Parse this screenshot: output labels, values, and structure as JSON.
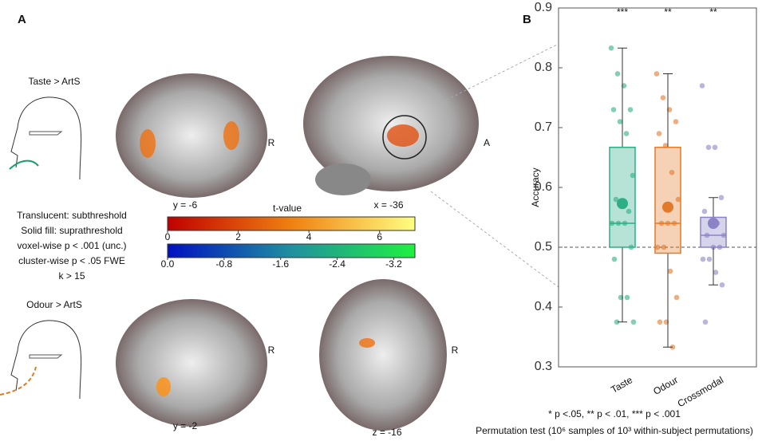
{
  "panel_a": {
    "label": "A",
    "contrast_1": "Taste > ArtS",
    "contrast_2": "Odour > ArtS",
    "legend": [
      "Translucent: subthreshold",
      "Solid fill: suprathreshold",
      "voxel-wise p < .001 (unc.)",
      "cluster-wise p < .05 FWE",
      "k > 15"
    ],
    "slices": [
      "y = -6",
      "x = -36",
      "y = -2",
      "z = -16"
    ],
    "orientation": [
      "R",
      "A",
      "R",
      "R"
    ],
    "colorbar_title": "t-value",
    "colorbar_positive": {
      "lim": [
        0,
        7
      ],
      "ticks": [
        0,
        2,
        4,
        6
      ]
    },
    "colorbar_negative": {
      "lim": [
        0,
        -3.5
      ],
      "ticks": [
        {
          "value": 0,
          "label": "0.0"
        },
        -0.8,
        -1.6,
        -2.4,
        -3.2
      ]
    }
  },
  "chart_data": {
    "type": "box",
    "label": "B",
    "ylabel": "Accuracy",
    "ylim": [
      0.3,
      0.9
    ],
    "yticks": [
      0.3,
      0.4,
      0.5,
      0.6,
      0.7,
      0.8,
      0.9
    ],
    "reference_line": 0.5,
    "series": [
      {
        "name": "Taste",
        "color": "#2fae86",
        "significance": "***",
        "min": 0.375,
        "q1": 0.5,
        "median": 0.54,
        "q3": 0.667,
        "max": 0.833,
        "mean": 0.573,
        "points": [
          0.833,
          0.79,
          0.77,
          0.73,
          0.73,
          0.71,
          0.69,
          0.62,
          0.58,
          0.575,
          0.56,
          0.54,
          0.54,
          0.54,
          0.5,
          0.48,
          0.416,
          0.416,
          0.375,
          0.375
        ]
      },
      {
        "name": "Odour",
        "color": "#e27a2b",
        "significance": "**",
        "min": 0.333,
        "q1": 0.49,
        "median": 0.54,
        "q3": 0.667,
        "max": 0.79,
        "mean": 0.567,
        "points": [
          0.79,
          0.75,
          0.73,
          0.71,
          0.69,
          0.67,
          0.625,
          0.58,
          0.54,
          0.54,
          0.54,
          0.5,
          0.5,
          0.46,
          0.416,
          0.375,
          0.375,
          0.333
        ]
      },
      {
        "name": "Crossmodal",
        "color": "#8a83c6",
        "significance": "**",
        "min": 0.437,
        "q1": 0.5,
        "median": 0.52,
        "q3": 0.55,
        "max": 0.583,
        "mean": 0.54,
        "points": [
          0.77,
          0.667,
          0.667,
          0.583,
          0.56,
          0.54,
          0.54,
          0.52,
          0.52,
          0.5,
          0.5,
          0.48,
          0.48,
          0.458,
          0.437,
          0.375
        ]
      }
    ],
    "notes": [
      "* p <.05, ** p < .01, *** p < .001",
      "Permutation test (10⁶ samples of 10³ within-subject permutations)"
    ]
  }
}
